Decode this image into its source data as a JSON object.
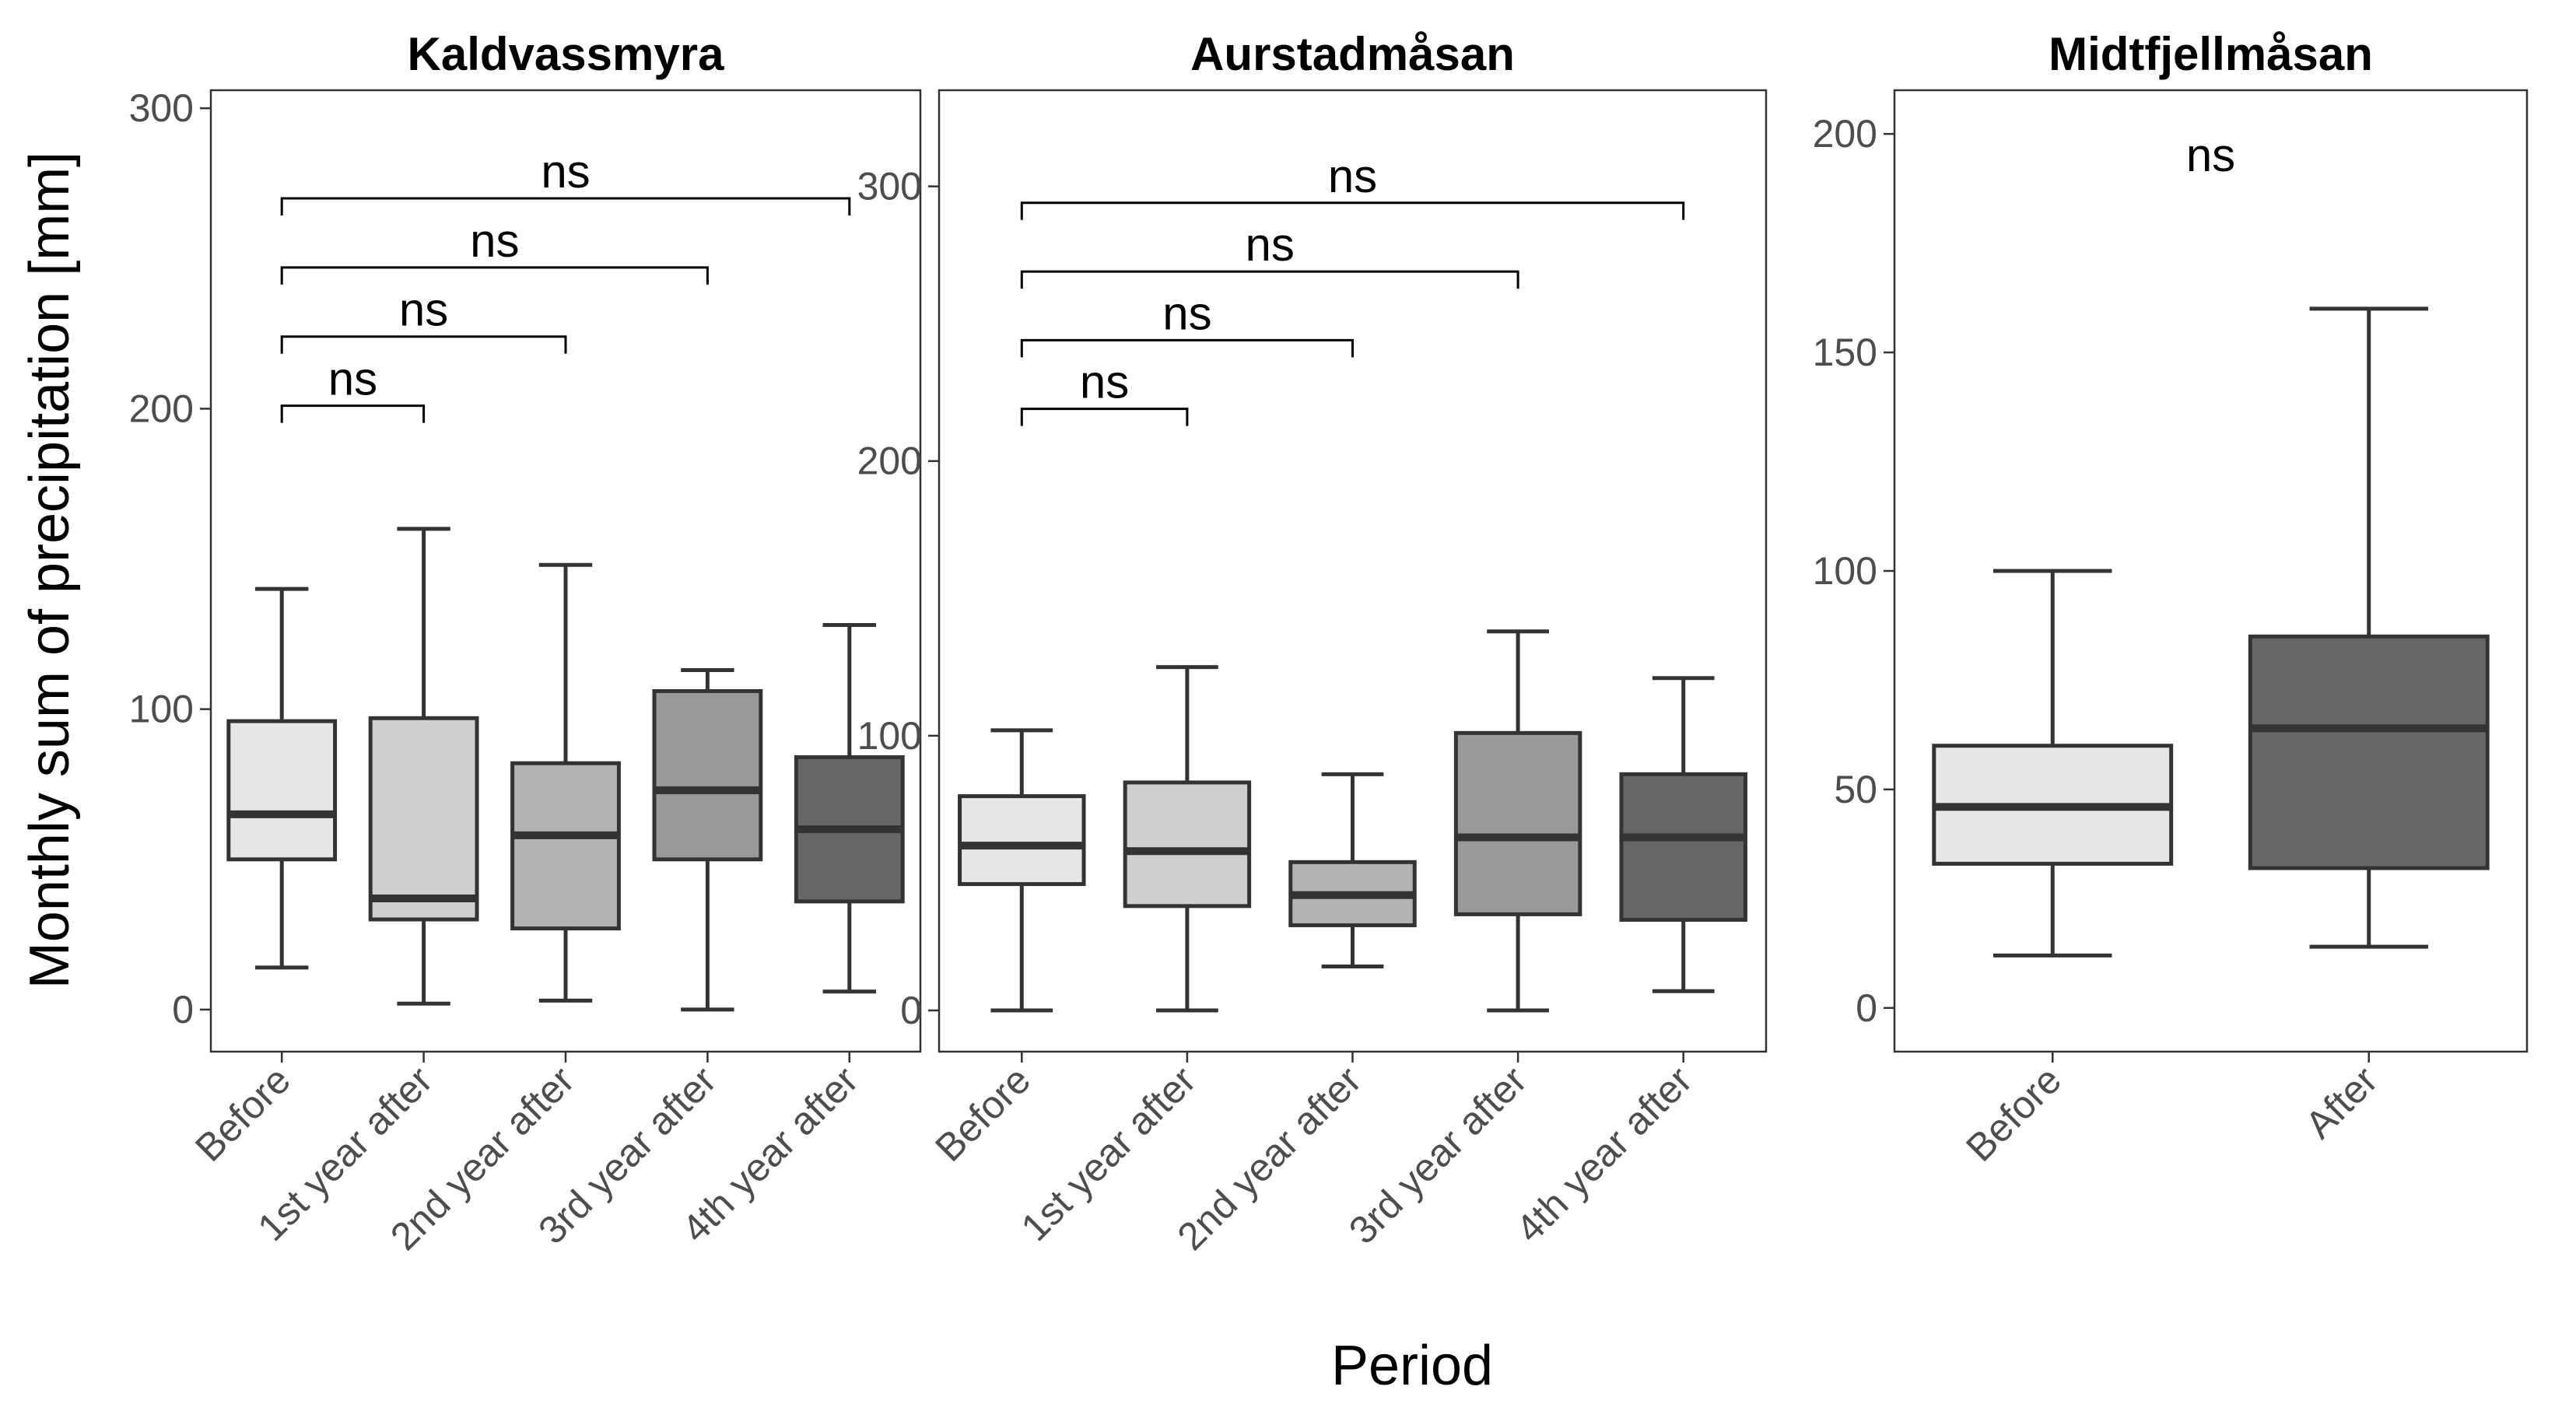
{
  "ylabel": "Monthly sum of precipitation [mm]",
  "xlabel": "Period",
  "chart_data": [
    {
      "type": "box",
      "title": "Kaldvassmyra",
      "ylim": [
        -14,
        306
      ],
      "yticks": [
        0,
        100,
        200,
        300
      ],
      "categories": [
        "Before",
        "1st year after",
        "2nd year after",
        "3rd year after",
        "4th year after"
      ],
      "colors": [
        "#e6e6e6",
        "#cfcfcf",
        "#b3b3b3",
        "#999999",
        "#666666"
      ],
      "boxes": [
        {
          "min": 14,
          "q1": 50,
          "median": 65,
          "q3": 96,
          "max": 140
        },
        {
          "min": 2,
          "q1": 30,
          "median": 37,
          "q3": 97,
          "max": 160
        },
        {
          "min": 3,
          "q1": 27,
          "median": 58,
          "q3": 82,
          "max": 148
        },
        {
          "min": 0,
          "q1": 50,
          "median": 73,
          "q3": 106,
          "max": 113
        },
        {
          "min": 6,
          "q1": 36,
          "median": 60,
          "q3": 84,
          "max": 128
        }
      ],
      "comparisons": [
        {
          "from": 0,
          "to": 1,
          "y": 201,
          "label": "ns"
        },
        {
          "from": 0,
          "to": 2,
          "y": 224,
          "label": "ns"
        },
        {
          "from": 0,
          "to": 3,
          "y": 247,
          "label": "ns"
        },
        {
          "from": 0,
          "to": 4,
          "y": 270,
          "label": "ns"
        }
      ]
    },
    {
      "type": "box",
      "title": "Aurstadmåsan",
      "ylim": [
        -15,
        335
      ],
      "yticks": [
        0,
        100,
        200,
        300
      ],
      "categories": [
        "Before",
        "1st year after",
        "2nd year after",
        "3rd year after",
        "4th year after"
      ],
      "colors": [
        "#e6e6e6",
        "#cfcfcf",
        "#b3b3b3",
        "#999999",
        "#666666"
      ],
      "boxes": [
        {
          "min": 0,
          "q1": 46,
          "median": 60,
          "q3": 78,
          "max": 102
        },
        {
          "min": 0,
          "q1": 38,
          "median": 58,
          "q3": 83,
          "max": 125
        },
        {
          "min": 16,
          "q1": 31,
          "median": 42,
          "q3": 54,
          "max": 86
        },
        {
          "min": 0,
          "q1": 35,
          "median": 63,
          "q3": 101,
          "max": 138
        },
        {
          "min": 7,
          "q1": 33,
          "median": 63,
          "q3": 86,
          "max": 121
        }
      ],
      "comparisons": [
        {
          "from": 0,
          "to": 1,
          "y": 219,
          "label": "ns"
        },
        {
          "from": 0,
          "to": 2,
          "y": 244,
          "label": "ns"
        },
        {
          "from": 0,
          "to": 3,
          "y": 269,
          "label": "ns"
        },
        {
          "from": 0,
          "to": 4,
          "y": 294,
          "label": "ns"
        }
      ]
    },
    {
      "type": "box",
      "title": "Midtfjellmåsan",
      "ylim": [
        -10,
        210
      ],
      "yticks": [
        0,
        50,
        100,
        150,
        200
      ],
      "categories": [
        "Before",
        "After"
      ],
      "colors": [
        "#e6e6e6",
        "#666666"
      ],
      "boxes": [
        {
          "min": 12,
          "q1": 33,
          "median": 46,
          "q3": 60,
          "max": 100
        },
        {
          "min": 14,
          "q1": 32,
          "median": 64,
          "q3": 85,
          "max": 160
        }
      ],
      "comparisons": [
        {
          "from": 0,
          "to": 1,
          "y": 189,
          "label": "ns",
          "bracket": false
        }
      ]
    }
  ]
}
